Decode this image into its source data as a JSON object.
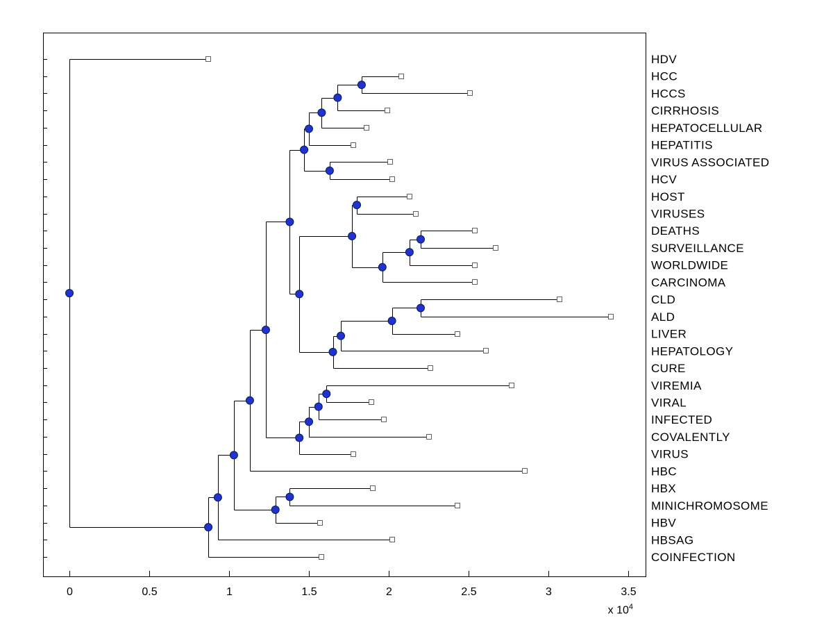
{
  "figure": {
    "background": "#ffffff",
    "axis_color": "#000000",
    "branch_line_color": "#000000",
    "branch_marker_color": "#2233cc",
    "branch_marker_edge_color": "#001a66",
    "leaf_marker_fill": "#ffffff",
    "leaf_marker_edge_color": "#606060",
    "text_color": "#000000"
  },
  "chart_data": {
    "type": "dendrogram",
    "subtype": "phylogenetic-tree",
    "orientation": "left-to-right",
    "grid": false,
    "legend": false,
    "title": "",
    "x_axis": {
      "ticks": [
        0,
        0.5,
        1,
        1.5,
        2,
        2.5,
        3,
        3.5
      ],
      "tick_labels": [
        "0",
        "0.5",
        "1",
        "1.5",
        "2",
        "2.5",
        "3",
        "3.5"
      ],
      "range": [
        -0.165,
        3.609
      ],
      "units_scale": 10000,
      "multiplier_base": "x 10",
      "multiplier_exponent": "4"
    },
    "leaves": [
      {
        "label": "HDV",
        "x": 0.87
      },
      {
        "label": "HCC",
        "x": 2.08
      },
      {
        "label": "HCCS",
        "x": 2.51
      },
      {
        "label": "CIRRHOSIS",
        "x": 1.99
      },
      {
        "label": "HEPATOCELLULAR",
        "x": 1.86
      },
      {
        "label": "HEPATITIS",
        "x": 1.78
      },
      {
        "label": "VIRUS ASSOCIATED",
        "x": 2.01
      },
      {
        "label": "HCV",
        "x": 2.02
      },
      {
        "label": "HOST",
        "x": 2.13
      },
      {
        "label": "VIRUSES",
        "x": 2.17
      },
      {
        "label": "DEATHS",
        "x": 2.54
      },
      {
        "label": "SURVEILLANCE",
        "x": 2.67
      },
      {
        "label": "WORLDWIDE",
        "x": 2.54
      },
      {
        "label": "CARCINOMA",
        "x": 2.54
      },
      {
        "label": "CLD",
        "x": 3.07
      },
      {
        "label": "ALD",
        "x": 3.39
      },
      {
        "label": "LIVER",
        "x": 2.43
      },
      {
        "label": "HEPATOLOGY",
        "x": 2.61
      },
      {
        "label": "CURE",
        "x": 2.26
      },
      {
        "label": "VIREMIA",
        "x": 2.77
      },
      {
        "label": "VIRAL",
        "x": 1.89
      },
      {
        "label": "INFECTED",
        "x": 1.97
      },
      {
        "label": "COVALENTLY",
        "x": 2.25
      },
      {
        "label": "VIRUS",
        "x": 1.78
      },
      {
        "label": "HBC",
        "x": 2.85
      },
      {
        "label": "HBX",
        "x": 1.9
      },
      {
        "label": "MINICHROMOSOME",
        "x": 2.43
      },
      {
        "label": "HBV",
        "x": 1.57
      },
      {
        "label": "HBSAG",
        "x": 2.02
      },
      {
        "label": "COINFECTION",
        "x": 1.58
      }
    ],
    "tree": {
      "x": 0.0,
      "children": [
        {
          "label": "HDV",
          "x": 0.87
        },
        {
          "x": 0.87,
          "children": [
            {
              "x": 0.93,
              "children": [
                {
                  "x": 1.03,
                  "children": [
                    {
                      "x": 1.13,
                      "children": [
                        {
                          "x": 1.23,
                          "children": [
                            {
                              "x": 1.38,
                              "children": [
                                {
                                  "x": 1.47,
                                  "children": [
                                    {
                                      "x": 1.5,
                                      "children": [
                                        {
                                          "x": 1.58,
                                          "children": [
                                            {
                                              "x": 1.68,
                                              "children": [
                                                {
                                                  "x": 1.83,
                                                  "children": [
                                                    {
                                                      "label": "HCC",
                                                      "x": 2.08
                                                    },
                                                    {
                                                      "label": "HCCS",
                                                      "x": 2.51
                                                    }
                                                  ]
                                                },
                                                {
                                                  "label": "CIRRHOSIS",
                                                  "x": 1.99
                                                }
                                              ]
                                            },
                                            {
                                              "label": "HEPATOCELLULAR",
                                              "x": 1.86
                                            }
                                          ]
                                        },
                                        {
                                          "label": "HEPATITIS",
                                          "x": 1.78
                                        }
                                      ]
                                    },
                                    {
                                      "x": 1.63,
                                      "children": [
                                        {
                                          "label": "VIRUS ASSOCIATED",
                                          "x": 2.01
                                        },
                                        {
                                          "label": "HCV",
                                          "x": 2.02
                                        }
                                      ]
                                    }
                                  ]
                                },
                                {
                                  "x": 1.44,
                                  "children": [
                                    {
                                      "x": 1.77,
                                      "children": [
                                        {
                                          "x": 1.8,
                                          "children": [
                                            {
                                              "label": "HOST",
                                              "x": 2.13
                                            },
                                            {
                                              "label": "VIRUSES",
                                              "x": 2.17
                                            }
                                          ]
                                        },
                                        {
                                          "x": 1.96,
                                          "children": [
                                            {
                                              "x": 2.13,
                                              "children": [
                                                {
                                                  "x": 2.2,
                                                  "children": [
                                                    {
                                                      "label": "DEATHS",
                                                      "x": 2.54
                                                    },
                                                    {
                                                      "label": "SURVEILLANCE",
                                                      "x": 2.67
                                                    }
                                                  ]
                                                },
                                                {
                                                  "label": "WORLDWIDE",
                                                  "x": 2.54
                                                }
                                              ]
                                            },
                                            {
                                              "label": "CARCINOMA",
                                              "x": 2.54
                                            }
                                          ]
                                        }
                                      ]
                                    },
                                    {
                                      "x": 1.65,
                                      "children": [
                                        {
                                          "x": 1.7,
                                          "children": [
                                            {
                                              "x": 2.02,
                                              "children": [
                                                {
                                                  "x": 2.2,
                                                  "children": [
                                                    {
                                                      "label": "CLD",
                                                      "x": 3.07
                                                    },
                                                    {
                                                      "label": "ALD",
                                                      "x": 3.39
                                                    }
                                                  ]
                                                },
                                                {
                                                  "label": "LIVER",
                                                  "x": 2.43
                                                }
                                              ]
                                            },
                                            {
                                              "label": "HEPATOLOGY",
                                              "x": 2.61
                                            }
                                          ]
                                        },
                                        {
                                          "label": "CURE",
                                          "x": 2.26
                                        }
                                      ]
                                    }
                                  ]
                                }
                              ]
                            },
                            {
                              "x": 1.44,
                              "children": [
                                {
                                  "x": 1.5,
                                  "children": [
                                    {
                                      "x": 1.56,
                                      "children": [
                                        {
                                          "x": 1.61,
                                          "children": [
                                            {
                                              "label": "VIREMIA",
                                              "x": 2.77
                                            },
                                            {
                                              "label": "VIRAL",
                                              "x": 1.89
                                            }
                                          ]
                                        },
                                        {
                                          "label": "INFECTED",
                                          "x": 1.97
                                        }
                                      ]
                                    },
                                    {
                                      "label": "COVALENTLY",
                                      "x": 2.25
                                    }
                                  ]
                                },
                                {
                                  "label": "VIRUS",
                                  "x": 1.78
                                }
                              ]
                            }
                          ]
                        },
                        {
                          "label": "HBC",
                          "x": 2.85
                        }
                      ]
                    },
                    {
                      "x": 1.29,
                      "children": [
                        {
                          "x": 1.38,
                          "children": [
                            {
                              "label": "HBX",
                              "x": 1.9
                            },
                            {
                              "label": "MINICHROMOSOME",
                              "x": 2.43
                            }
                          ]
                        },
                        {
                          "label": "HBV",
                          "x": 1.57
                        }
                      ]
                    }
                  ]
                },
                {
                  "label": "HBSAG",
                  "x": 2.02
                }
              ]
            },
            {
              "label": "COINFECTION",
              "x": 1.58
            }
          ]
        }
      ]
    }
  }
}
